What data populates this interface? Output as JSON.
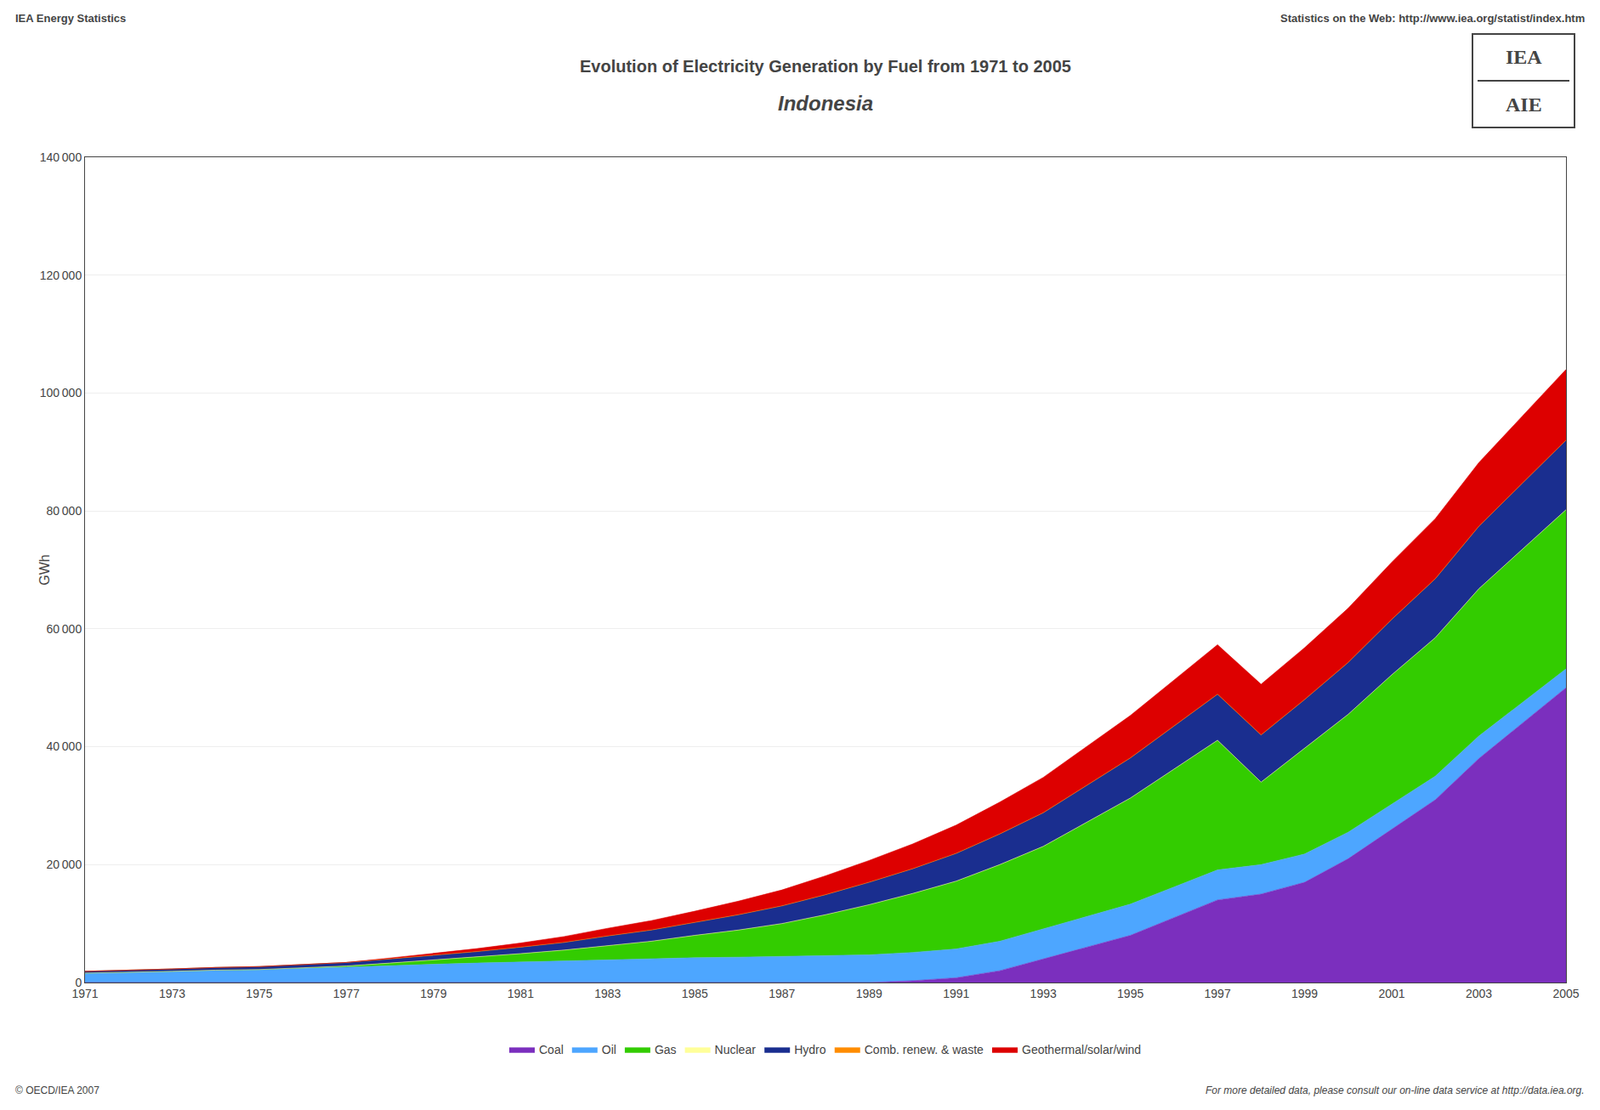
{
  "chart_data": {
    "type": "area",
    "title": "Evolution of Electricity Generation by Fuel from 1971 to 2005",
    "subtitle": "Indonesia",
    "ylabel": "GWh",
    "annotations": [
      "IEA Energy Statistics",
      "Statistics on the Web: http://www.iea.org/statist/index.htm",
      "© OECD/IEA 2007",
      "For more detailed data, please consult our on-line data service at http://data.iea.org.",
      "IEA",
      "AIE"
    ],
    "x": [
      1971,
      1972,
      1973,
      1974,
      1975,
      1976,
      1977,
      1978,
      1979,
      1980,
      1981,
      1982,
      1983,
      1984,
      1985,
      1986,
      1987,
      1988,
      1989,
      1990,
      1991,
      1992,
      1993,
      1994,
      1995,
      1996,
      1997,
      1998,
      1999,
      2000,
      2001,
      2002,
      2003,
      2004,
      2005
    ],
    "xlim": [
      1971,
      2005
    ],
    "xticks": [
      1971,
      1973,
      1975,
      1977,
      1979,
      1981,
      1983,
      1985,
      1987,
      1989,
      1991,
      1993,
      1995,
      1997,
      1999,
      2001,
      2003,
      2005
    ],
    "ylim": [
      0,
      140000
    ],
    "yticks": [
      0,
      {
        "value": 20000,
        "label": "20 000"
      },
      {
        "value": 40000,
        "label": "40 000"
      },
      {
        "value": 60000,
        "label": "60 000"
      },
      {
        "value": 80000,
        "label": "80 000"
      },
      {
        "value": 100000,
        "label": "100 000"
      },
      {
        "value": 120000,
        "label": "120 000"
      },
      {
        "value": 140000,
        "label": "140 000"
      }
    ],
    "stacked": true,
    "grid": true,
    "legend": "bottom",
    "series": [
      {
        "name": "Coal",
        "color": "#7B2FBE",
        "values": [
          0,
          0,
          0,
          0,
          0,
          0,
          0,
          0,
          0,
          0,
          0,
          0,
          0,
          0,
          0,
          0,
          0,
          0,
          0,
          300,
          800,
          2000,
          4000,
          6000,
          8000,
          11000,
          14000,
          15000,
          17000,
          21000,
          26000,
          31000,
          38000,
          44000,
          50000
        ]
      },
      {
        "name": "Oil",
        "color": "#4DA6FF",
        "values": [
          1600,
          1700,
          1900,
          2100,
          2200,
          2400,
          2600,
          2900,
          3100,
          3300,
          3500,
          3700,
          3900,
          4000,
          4200,
          4300,
          4400,
          4500,
          4700,
          4800,
          4900,
          5000,
          5100,
          5200,
          5300,
          5200,
          5100,
          5000,
          4800,
          4500,
          4200,
          4000,
          3800,
          3500,
          3200
        ]
      },
      {
        "name": "Gas",
        "color": "#33CC00",
        "values": [
          0,
          0,
          0,
          0,
          0,
          100,
          200,
          400,
          700,
          1000,
          1400,
          1800,
          2400,
          3000,
          3800,
          4600,
          5600,
          7000,
          8500,
          10000,
          11500,
          13000,
          14000,
          16000,
          18000,
          20000,
          22000,
          14000,
          18000,
          20000,
          22000,
          23500,
          25000,
          26000,
          27000
        ]
      },
      {
        "name": "Nuclear",
        "color": "#FFFF99",
        "values": [
          0,
          0,
          0,
          0,
          0,
          0,
          0,
          0,
          0,
          0,
          0,
          0,
          0,
          0,
          0,
          0,
          0,
          0,
          0,
          0,
          0,
          0,
          0,
          0,
          0,
          0,
          0,
          0,
          0,
          0,
          0,
          0,
          0,
          0,
          0
        ]
      },
      {
        "name": "Hydro",
        "color": "#1A2E8F",
        "values": [
          300,
          350,
          400,
          450,
          500,
          550,
          600,
          700,
          800,
          950,
          1100,
          1300,
          1600,
          1900,
          2200,
          2600,
          3000,
          3400,
          3800,
          4200,
          4700,
          5200,
          5700,
          6200,
          6800,
          7300,
          7800,
          8000,
          8200,
          8800,
          9400,
          10000,
          10600,
          11200,
          11800
        ]
      },
      {
        "name": "Comb. renew. & waste",
        "color": "#FF8C00",
        "values": [
          0,
          0,
          0,
          0,
          0,
          0,
          0,
          0,
          0,
          0,
          0,
          0,
          0,
          0,
          0,
          0,
          0,
          0,
          0,
          0,
          0,
          0,
          0,
          0,
          0,
          0,
          0,
          0,
          0,
          0,
          0,
          0,
          0,
          0,
          0
        ]
      },
      {
        "name": "Geothermal/solar/wind",
        "color": "#DD0000",
        "values": [
          0,
          0,
          0,
          0,
          0,
          0,
          0,
          150,
          300,
          500,
          700,
          1000,
          1300,
          1600,
          1900,
          2300,
          2700,
          3200,
          3700,
          4200,
          4800,
          5400,
          6000,
          6600,
          7200,
          7800,
          8400,
          8600,
          8800,
          9200,
          9700,
          10200,
          10800,
          11400,
          12000
        ]
      }
    ]
  }
}
